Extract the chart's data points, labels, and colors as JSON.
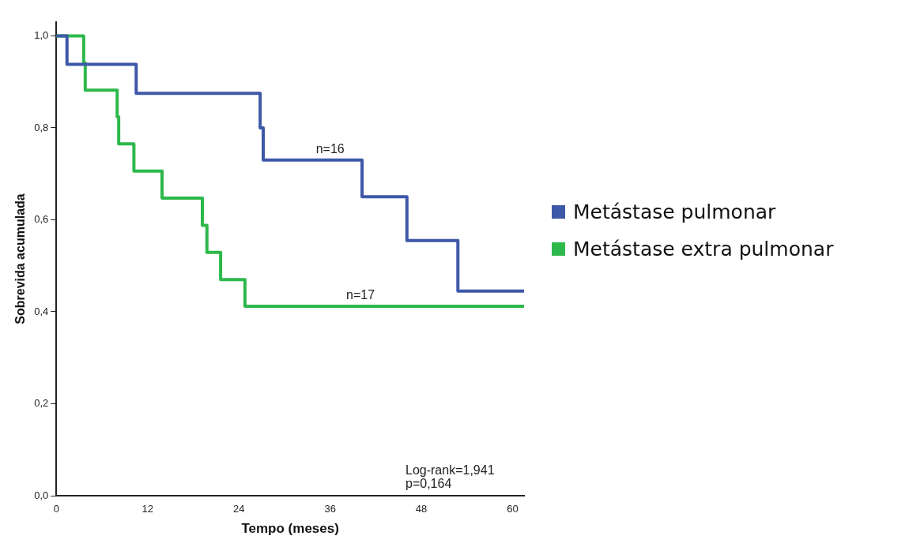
{
  "chart_data": {
    "type": "step",
    "xlabel": "Tempo (meses)",
    "ylabel": "Sobrevida acumulada",
    "xlim": [
      0,
      61.5
    ],
    "ylim": [
      0,
      1.03
    ],
    "xticks": [
      0,
      12,
      24,
      36,
      48,
      60
    ],
    "yticks": [
      {
        "value": 0,
        "label": "0,0"
      },
      {
        "value": 0.2,
        "label": "0,2"
      },
      {
        "value": 0.4,
        "label": "0,4"
      },
      {
        "value": 0.6,
        "label": "0,6"
      },
      {
        "value": 0.8,
        "label": "0,8"
      },
      {
        "value": 1,
        "label": "1,0"
      }
    ],
    "grid": false,
    "legend": "right",
    "marker": "none",
    "line_style": "solid",
    "series": [
      {
        "name": "Metástase pulmonar",
        "color": "#3e58a8",
        "x": [
          0,
          1.4,
          10.5,
          26.8,
          27.2,
          40.2,
          46.1,
          52.8,
          61.5
        ],
        "values": [
          1,
          0.938,
          0.875,
          0.8,
          0.73,
          0.65,
          0.555,
          0.445,
          0.445
        ]
      },
      {
        "name": "Metástase extra pulmonar",
        "color": "#2db84b",
        "x": [
          0,
          3.6,
          3.8,
          8.0,
          8.2,
          10.2,
          13.9,
          19.2,
          19.8,
          21.6,
          24.8,
          61.5
        ],
        "values": [
          1,
          0.941,
          0.882,
          0.824,
          0.765,
          0.706,
          0.647,
          0.588,
          0.529,
          0.47,
          0.412,
          0.412
        ]
      }
    ],
    "annotations": [
      {
        "text": "n=16",
        "x": 36,
        "y": 0.73
      },
      {
        "text": "n=17",
        "x": 40,
        "y": 0.412
      },
      "Log-rank=1,941\np=0,164"
    ]
  }
}
